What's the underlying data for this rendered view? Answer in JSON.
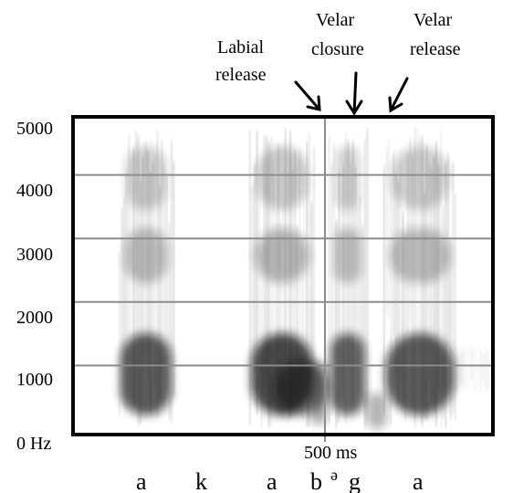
{
  "annotations": [
    {
      "id": "labial",
      "lines": [
        "Labial",
        "release"
      ]
    },
    {
      "id": "velar-closure",
      "lines": [
        "Velar",
        "closure"
      ]
    },
    {
      "id": "velar-release",
      "lines": [
        "Velar",
        "release"
      ]
    }
  ],
  "y_axis": {
    "ticks": [
      "5000",
      "4000",
      "3000",
      "2000",
      "1000",
      "0 Hz"
    ],
    "values": [
      5000,
      4000,
      3000,
      2000,
      1000,
      0
    ]
  },
  "x_axis": {
    "marker_label": "500 ms",
    "marker_value_ms": 500
  },
  "segments": [
    "a",
    "k",
    "a",
    "b",
    "ə",
    "g",
    "a"
  ],
  "colors": {
    "background": "#ffffff",
    "frame": "#000000",
    "grid": "#8c8c8c",
    "ink": "#000000"
  }
}
